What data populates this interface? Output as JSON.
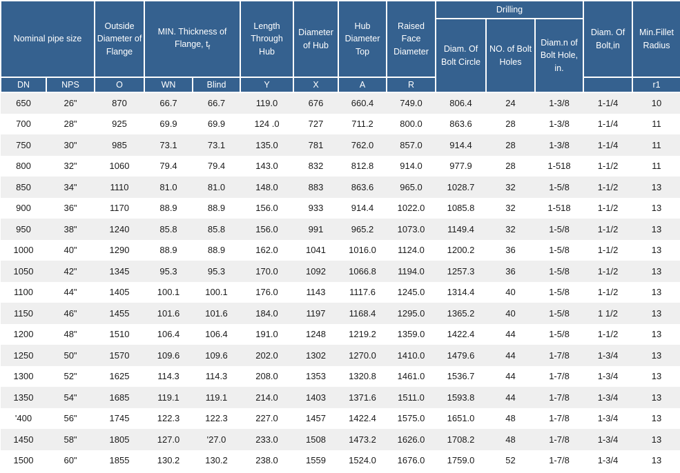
{
  "colors": {
    "header_bg": "#35618F",
    "header_text": "#FFFFFF",
    "row_stripe": "#EFEFEF",
    "row_plain": "#FFFFFF",
    "body_text": "#191919",
    "border": "#FFFFFF"
  },
  "header": {
    "nominal_pipe_size": "Nominal pipe size",
    "outside_diameter": "Outside Diameter of Flange",
    "min_thickness_main": "MIN. Thickness of Flange, t",
    "min_thickness_sub": "f",
    "length_through_hub": "Length Through Hub",
    "diameter_of_hub": "Diameter of Hub",
    "hub_diameter_top": "Hub Diameter Top",
    "raised_face_diameter": "Raised Face Diameter",
    "drilling": "Drilling",
    "bolt_circle": "Diam. Of Bolt Circle",
    "bolt_holes": "NO. of Bolt Holes",
    "bolt_hole_diam": "Diam.n of Bolt Hole, in.",
    "diam_of_bolt": "Diam. Of Bolt,in",
    "min_fillet_radius": "Min.Fillet Radius"
  },
  "subheader": {
    "dn": "DN",
    "nps": "NPS",
    "o": "O",
    "wn": "WN",
    "blind": "Blind",
    "y": "Y",
    "x": "X",
    "a": "A",
    "r": "R",
    "bolt_blank": "",
    "r1": "r1"
  },
  "column_keys": [
    "dn",
    "nps",
    "outside-diameter",
    "thickness-wn",
    "thickness-blind",
    "length-through-hub",
    "hub-diameter",
    "hub-diameter-top",
    "raised-face-diameter",
    "bolt-circle-diameter",
    "bolt-holes-count",
    "bolt-hole-diameter",
    "bolt-diameter",
    "fillet-radius"
  ],
  "rows": [
    [
      "650",
      "26\"",
      "870",
      "66.7",
      "66.7",
      "119.0",
      "676",
      "660.4",
      "749.0",
      "806.4",
      "24",
      "1-3/8",
      "1-1/4",
      "10"
    ],
    [
      "700",
      "28\"",
      "925",
      "69.9",
      "69.9",
      "124 .0",
      "727",
      "711.2",
      "800.0",
      "863.6",
      "28",
      "1-3/8",
      "1-1/4",
      "11"
    ],
    [
      "750",
      "30\"",
      "985",
      "73.1",
      "73.1",
      "135.0",
      "781",
      "762.0",
      "857.0",
      "914.4",
      "28",
      "1-3/8",
      "1-1/4",
      "11"
    ],
    [
      "800",
      "32\"",
      "1060",
      "79.4",
      "79.4",
      "143.0",
      "832",
      "812.8",
      "914.0",
      "977.9",
      "28",
      "1-518",
      "1-1/2",
      "11"
    ],
    [
      "850",
      "34\"",
      "1110",
      "81.0",
      "81.0",
      "148.0",
      "883",
      "863.6",
      "965.0",
      "1028.7",
      "32",
      "1-5/8",
      "1-1/2",
      "13"
    ],
    [
      "900",
      "36\"",
      "1170",
      "88.9",
      "88.9",
      "156.0",
      "933",
      "914.4",
      "1022.0",
      "1085.8",
      "32",
      "1-518",
      "1-1/2",
      "13"
    ],
    [
      "950",
      "38\"",
      "1240",
      "85.8",
      "85.8",
      "156.0",
      "991",
      "965.2",
      "1073.0",
      "1149.4",
      "32",
      "1-5/8",
      "1-1/2",
      "13"
    ],
    [
      "1000",
      "40\"",
      "1290",
      "88.9",
      "88.9",
      "162.0",
      "1041",
      "1016.0",
      "1124.0",
      "1200.2",
      "36",
      "1-5/8",
      "1-1/2",
      "13"
    ],
    [
      "1050",
      "42\"",
      "1345",
      "95.3",
      "95.3",
      "170.0",
      "1092",
      "1066.8",
      "1194.0",
      "1257.3",
      "36",
      "1-5/8",
      "1-1/2",
      "13"
    ],
    [
      "1100",
      "44\"",
      "1405",
      "100.1",
      "100.1",
      "176.0",
      "1143",
      "1117.6",
      "1245.0",
      "1314.4",
      "40",
      "1-5/8",
      "1-1/2",
      "13"
    ],
    [
      "1150",
      "46\"",
      "1455",
      "101.6",
      "101.6",
      "184.0",
      "1197",
      "1168.4",
      "1295.0",
      "1365.2",
      "40",
      "1-5/8",
      "1 1/2",
      "13"
    ],
    [
      "1200",
      "48\"",
      "1510",
      "106.4",
      "106.4",
      "191.0",
      "1248",
      "1219.2",
      "1359.0",
      "1422.4",
      "44",
      "1-5/8",
      "1-1/2",
      "13"
    ],
    [
      "1250",
      "50\"",
      "1570",
      "109.6",
      "109.6",
      "202.0",
      "1302",
      "1270.0",
      "1410.0",
      "1479.6",
      "44",
      "1-7/8",
      "1-3/4",
      "13"
    ],
    [
      "1300",
      "52\"",
      "1625",
      "114.3",
      "114.3",
      "208.0",
      "1353",
      "1320.8",
      "1461.0",
      "1536.7",
      "44",
      "1-7/8",
      "1-3/4",
      "13"
    ],
    [
      "1350",
      "54\"",
      "1685",
      "119.1",
      "119.1",
      "214.0",
      "1403",
      "1371.6",
      "1511.0",
      "1593.8",
      "44",
      "1-7/8",
      "1-3/4",
      "13"
    ],
    [
      "'400",
      "56\"",
      "1745",
      "122.3",
      "122.3",
      "227.0",
      "1457",
      "1422.4",
      "1575.0",
      "1651.0",
      "48",
      "1-7/8",
      "1-3/4",
      "13"
    ],
    [
      "1450",
      "58\"",
      "1805",
      "127.0",
      "'27.0",
      "233.0",
      "1508",
      "1473.2",
      "1626.0",
      "1708.2",
      "48",
      "1-7/8",
      "1-3/4",
      "13"
    ],
    [
      "1500",
      "60\"",
      "1855",
      "130.2",
      "130.2",
      "238.0",
      "1559",
      "1524.0",
      "1676.0",
      "1759.0",
      "52",
      "1-7/8",
      "1-3/4",
      "13"
    ]
  ]
}
